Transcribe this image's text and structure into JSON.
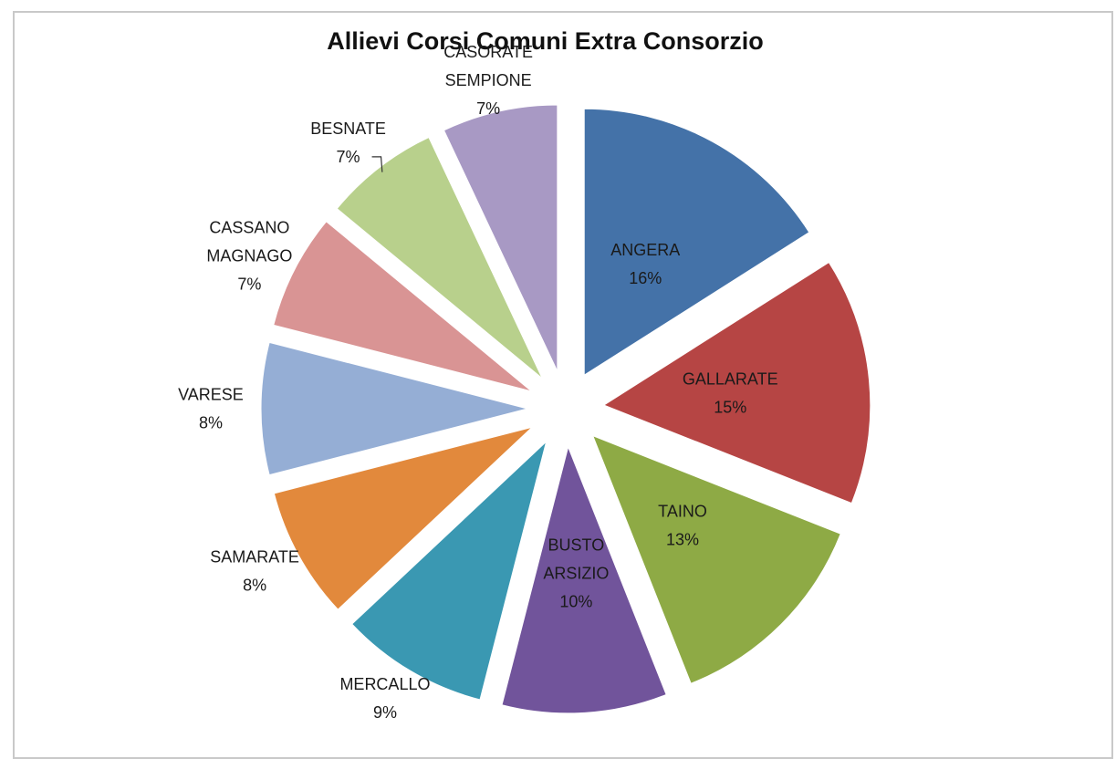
{
  "chart_data": {
    "type": "pie",
    "title": "Allievi Corsi Comuni Extra Consorzio",
    "exploded": true,
    "slices": [
      {
        "label_lines": [
          "ANGERA"
        ],
        "percent_label": "16%",
        "value": 16,
        "color": "#4472a8"
      },
      {
        "label_lines": [
          "GALLARATE"
        ],
        "percent_label": "15%",
        "value": 15,
        "color": "#b64544"
      },
      {
        "label_lines": [
          "TAINO"
        ],
        "percent_label": "13%",
        "value": 13,
        "color": "#8eaa45"
      },
      {
        "label_lines": [
          "BUSTO",
          "ARSIZIO"
        ],
        "percent_label": "10%",
        "value": 10,
        "color": "#71549b"
      },
      {
        "label_lines": [
          "MERCALLO"
        ],
        "percent_label": "9%",
        "value": 9,
        "color": "#3a98b2"
      },
      {
        "label_lines": [
          "SAMARATE"
        ],
        "percent_label": "8%",
        "value": 8,
        "color": "#e2893c"
      },
      {
        "label_lines": [
          "VARESE"
        ],
        "percent_label": "8%",
        "value": 8,
        "color": "#95aed5"
      },
      {
        "label_lines": [
          "CASSANO",
          "MAGNAGO"
        ],
        "percent_label": "7%",
        "value": 7,
        "color": "#d99494"
      },
      {
        "label_lines": [
          "BESNATE"
        ],
        "percent_label": "7%",
        "value": 7,
        "color": "#b8d08c"
      },
      {
        "label_lines": [
          "CASORATE",
          "SEMPIONE"
        ],
        "percent_label": "7%",
        "value": 7,
        "color": "#a899c4"
      }
    ]
  }
}
